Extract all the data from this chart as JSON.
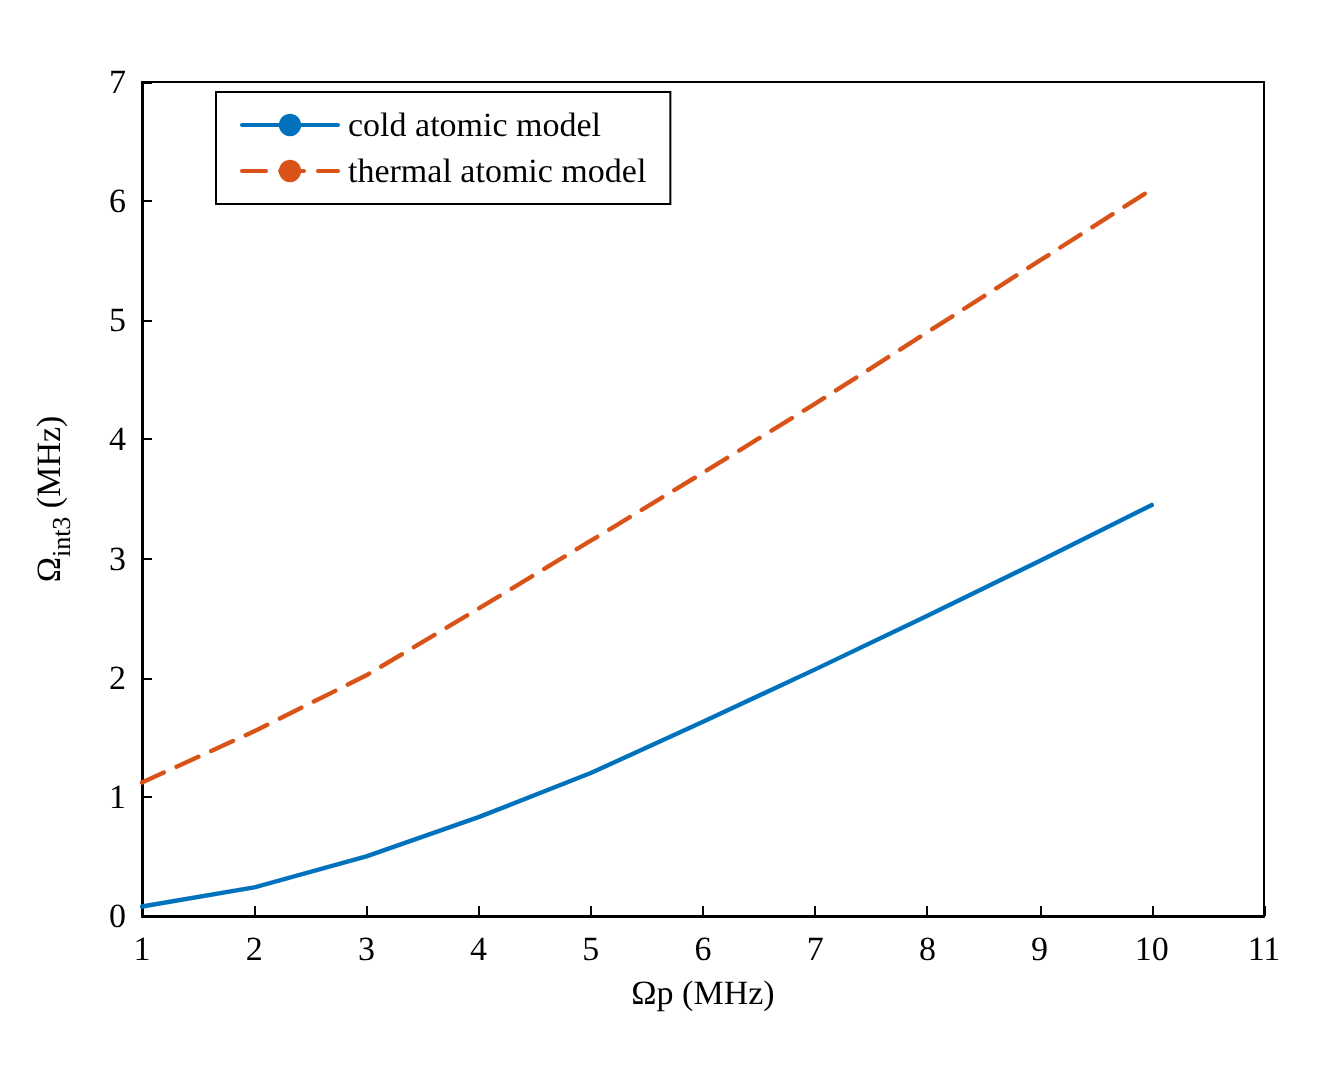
{
  "chart_data": {
    "type": "line",
    "xlabel": "Ωp (MHz)",
    "ylabel": "Ω$_{int3}$ (MHz)",
    "x": [
      1,
      2,
      3,
      4,
      5,
      6,
      7,
      8,
      9,
      10
    ],
    "series": [
      {
        "name": "cold atomic model",
        "color": "#0072bd",
        "line_style": "solid",
        "values": [
          0.08,
          0.24,
          0.5,
          0.83,
          1.2,
          1.63,
          2.07,
          2.52,
          2.98,
          3.45
        ]
      },
      {
        "name": "thermal atomic model",
        "color": "#d95319",
        "line_style": "dashed",
        "values": [
          1.12,
          1.55,
          2.02,
          2.58,
          3.15,
          3.72,
          4.3,
          4.9,
          5.5,
          6.1
        ]
      }
    ],
    "xlim": [
      1,
      11
    ],
    "xticks": [
      1,
      2,
      3,
      4,
      5,
      6,
      7,
      8,
      9,
      10,
      11
    ],
    "ylim": [
      0,
      7
    ],
    "yticks": [
      0,
      1,
      2,
      3,
      4,
      5,
      6,
      7
    ],
    "grid": false,
    "legend": "top left",
    "marker": "none"
  }
}
